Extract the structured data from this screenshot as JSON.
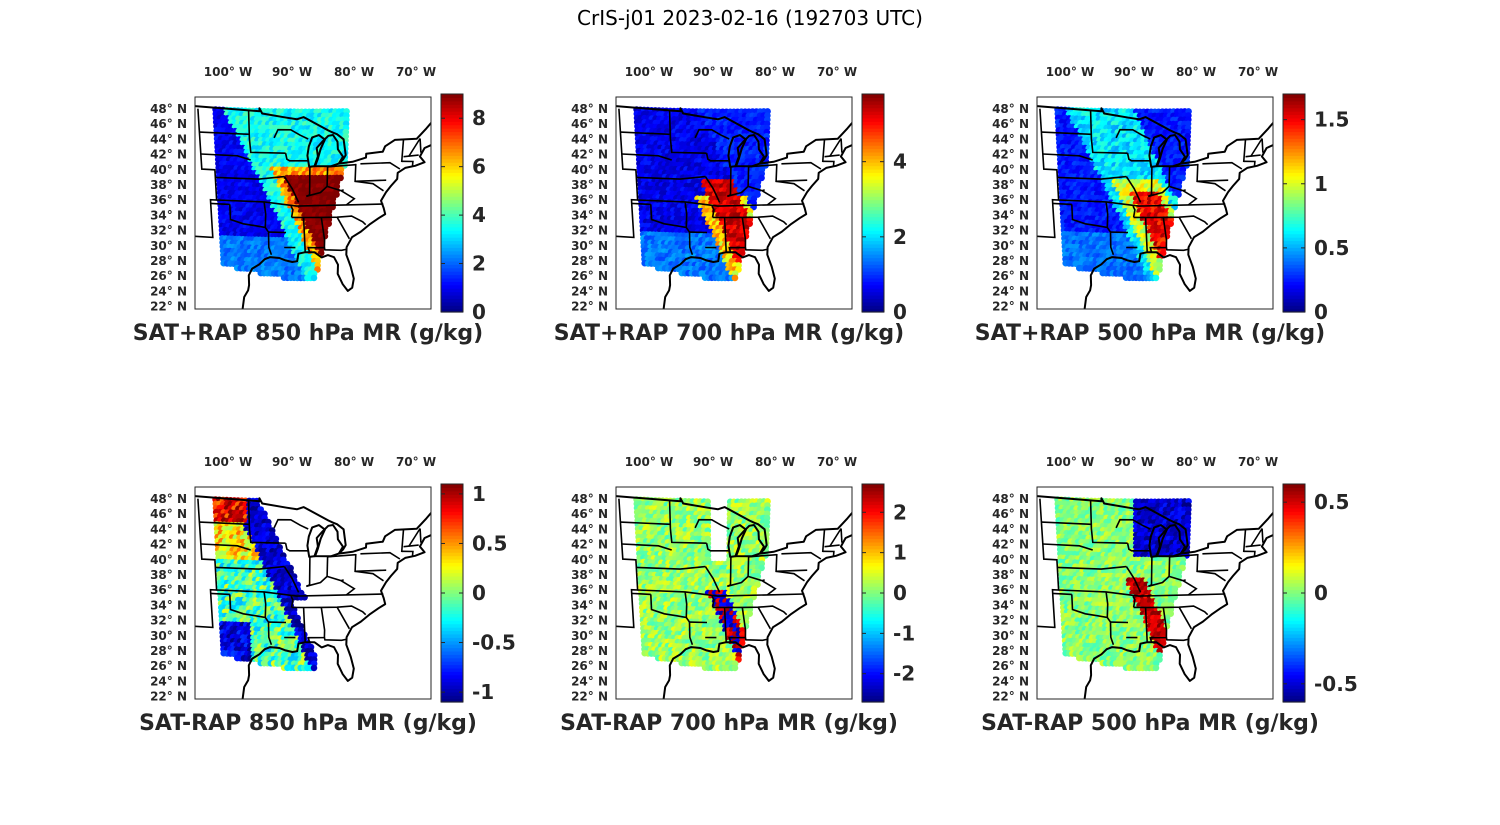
{
  "figure": {
    "title": "CrIS-j01 2023-02-16 (192703 UTC)",
    "lon_ticks": [
      "100° W",
      "90° W",
      "80° W",
      "70° W"
    ],
    "lat_ticks": [
      "48° N",
      "46° N",
      "44° N",
      "42° N",
      "40° N",
      "38° N",
      "36° N",
      "34° N",
      "32° N",
      "30° N",
      "28° N",
      "26° N",
      "24° N",
      "22° N"
    ],
    "colormap": "jet",
    "panels": [
      {
        "id": "p1",
        "title": "SAT+RAP 850 hPa MR (g/kg)",
        "field": "total",
        "level": 850,
        "clim": [
          0,
          9
        ],
        "cb_ticks": [
          0,
          2,
          4,
          6,
          8
        ],
        "cb_labels": [
          "0",
          "2",
          "4",
          "6",
          "8"
        ]
      },
      {
        "id": "p2",
        "title": "SAT+RAP 700 hPa MR (g/kg)",
        "field": "total",
        "level": 700,
        "clim": [
          0,
          5.8
        ],
        "cb_ticks": [
          0,
          2,
          4
        ],
        "cb_labels": [
          "0",
          "2",
          "4"
        ]
      },
      {
        "id": "p3",
        "title": "SAT+RAP 500 hPa MR (g/kg)",
        "field": "total",
        "level": 500,
        "clim": [
          0,
          1.7
        ],
        "cb_ticks": [
          0,
          0.5,
          1,
          1.5
        ],
        "cb_labels": [
          "0",
          "0.5",
          "1",
          "1.5"
        ]
      },
      {
        "id": "p4",
        "title": "SAT-RAP 850 hPa MR (g/kg)",
        "field": "diff",
        "level": 850,
        "clim": [
          -1.1,
          1.1
        ],
        "cb_ticks": [
          -1,
          -0.5,
          0,
          0.5,
          1
        ],
        "cb_labels": [
          "-1",
          "-0.5",
          "0",
          "0.5",
          "1"
        ]
      },
      {
        "id": "p5",
        "title": "SAT-RAP 700 hPa MR (g/kg)",
        "field": "diff",
        "level": 700,
        "clim": [
          -2.7,
          2.7
        ],
        "cb_ticks": [
          -2,
          -1,
          0,
          1,
          2
        ],
        "cb_labels": [
          "-2",
          "-1",
          "0",
          "1",
          "2"
        ]
      },
      {
        "id": "p6",
        "title": "SAT-RAP 500 hPa MR (g/kg)",
        "field": "diff",
        "level": 500,
        "clim": [
          -0.6,
          0.6
        ],
        "cb_ticks": [
          -0.5,
          0,
          0.5
        ],
        "cb_labels": [
          "-0.5",
          "0",
          "0.5"
        ]
      }
    ]
  }
}
